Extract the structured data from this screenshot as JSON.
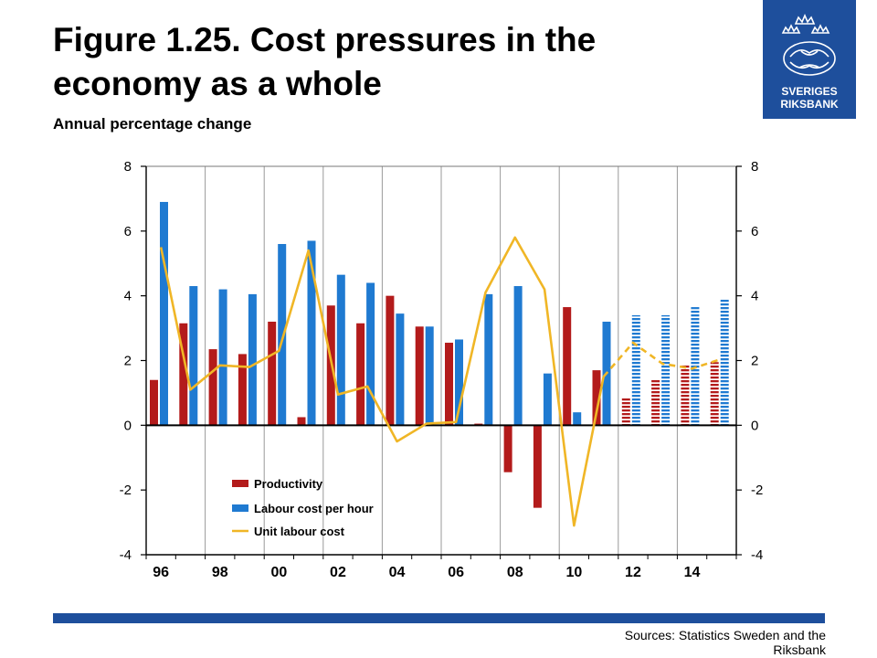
{
  "header": {
    "title": "Figure 1.25. Cost pressures in the economy as a whole",
    "subtitle": "Annual percentage change"
  },
  "logo": {
    "line1": "SVERIGES",
    "line2": "RIKSBANK"
  },
  "footer": {
    "sources": "Sources: Statistics Sweden and the Riksbank"
  },
  "colors": {
    "productivity": "#b31b1b",
    "labour_cost": "#1f7ad1",
    "unit_labour_cost": "#f0b626",
    "brand_blue": "#1e4f9c"
  },
  "chart_data": {
    "type": "bar",
    "years": [
      1996,
      1997,
      1998,
      1999,
      2000,
      2001,
      2002,
      2003,
      2004,
      2005,
      2006,
      2007,
      2008,
      2009,
      2010,
      2011,
      2012,
      2013,
      2014,
      2015
    ],
    "x_tick_labels": [
      "96",
      "98",
      "00",
      "02",
      "04",
      "06",
      "08",
      "10",
      "12",
      "14"
    ],
    "y_ticks": [
      "-4",
      "-2",
      "0",
      "2",
      "4",
      "6",
      "8"
    ],
    "ylim": [
      -4,
      8
    ],
    "forecast_from": 2012,
    "series": [
      {
        "name": "Productivity",
        "kind": "bar",
        "values": [
          1.4,
          3.15,
          2.35,
          2.2,
          3.2,
          0.25,
          3.7,
          3.15,
          4.0,
          3.05,
          2.55,
          0.05,
          -1.45,
          -2.55,
          3.65,
          1.7,
          0.85,
          1.4,
          1.85,
          1.95
        ]
      },
      {
        "name": "Labour cost per hour",
        "kind": "bar",
        "values": [
          6.9,
          4.3,
          4.2,
          4.05,
          5.6,
          5.7,
          4.65,
          4.4,
          3.45,
          3.05,
          2.65,
          4.05,
          4.3,
          1.6,
          0.4,
          3.2,
          3.4,
          3.4,
          3.65,
          3.9
        ]
      },
      {
        "name": "Unit labour cost",
        "kind": "line",
        "values": [
          5.5,
          1.1,
          1.85,
          1.8,
          2.3,
          5.4,
          0.95,
          1.2,
          -0.5,
          0.05,
          0.1,
          4.1,
          5.8,
          4.2,
          -3.1,
          1.5,
          2.55,
          1.9,
          1.75,
          2.05
        ]
      }
    ],
    "legend": [
      "Productivity",
      "Labour cost per hour",
      "Unit labour cost"
    ],
    "legend_position": "bottom-left",
    "grid": "vertical"
  }
}
